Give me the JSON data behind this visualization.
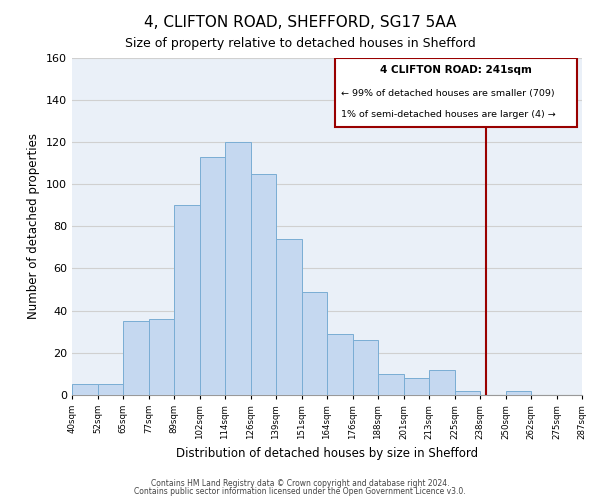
{
  "title": "4, CLIFTON ROAD, SHEFFORD, SG17 5AA",
  "subtitle": "Size of property relative to detached houses in Shefford",
  "xlabel": "Distribution of detached houses by size in Shefford",
  "ylabel": "Number of detached properties",
  "bar_color": "#c5d8f0",
  "bar_edgecolor": "#7aadd4",
  "bin_labels": [
    "40sqm",
    "52sqm",
    "65sqm",
    "77sqm",
    "89sqm",
    "102sqm",
    "114sqm",
    "126sqm",
    "139sqm",
    "151sqm",
    "164sqm",
    "176sqm",
    "188sqm",
    "201sqm",
    "213sqm",
    "225sqm",
    "238sqm",
    "250sqm",
    "262sqm",
    "275sqm",
    "287sqm"
  ],
  "bar_values": [
    5,
    5,
    35,
    36,
    90,
    113,
    120,
    105,
    74,
    49,
    29,
    26,
    10,
    8,
    12,
    2,
    0,
    2,
    0,
    0
  ],
  "bin_edges_val": [
    40,
    52,
    65,
    77,
    89,
    102,
    114,
    126,
    139,
    151,
    164,
    176,
    188,
    201,
    213,
    225,
    238,
    250,
    262,
    275,
    287
  ],
  "vline_x": 241,
  "vline_color": "#990000",
  "annotation_title": "4 CLIFTON ROAD: 241sqm",
  "annotation_line1": "← 99% of detached houses are smaller (709)",
  "annotation_line2": "1% of semi-detached houses are larger (4) →",
  "ylim": [
    0,
    160
  ],
  "yticks": [
    0,
    20,
    40,
    60,
    80,
    100,
    120,
    140,
    160
  ],
  "footnote1": "Contains HM Land Registry data © Crown copyright and database right 2024.",
  "footnote2": "Contains public sector information licensed under the Open Government Licence v3.0.",
  "background_color": "#ffffff",
  "grid_color": "#d0d0d0"
}
